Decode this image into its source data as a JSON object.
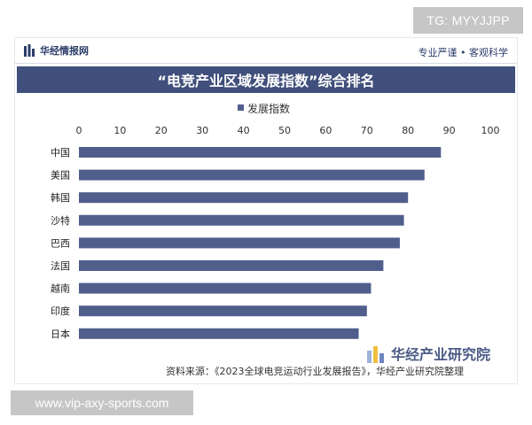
{
  "badge": {
    "text": "TG: MYYJJPP"
  },
  "header": {
    "brand": "华经情报网",
    "motto": "专业严谨 • 客观科学"
  },
  "colors": {
    "title_band": "#404f7b",
    "bar": "#505e8c",
    "text_dark": "#2c3d6a"
  },
  "footer": {
    "source": "资料来源：《2023全球电竞运动行业发展报告》，华经产业研究院整理",
    "watermark_name": "华经产业研究院"
  },
  "url_badge": {
    "text": "www.vip-axy-sports.com"
  },
  "chart_data": {
    "type": "bar",
    "orientation": "horizontal",
    "title": "“电竞产业区域发展指数”综合排名",
    "categories": [
      "中国",
      "美国",
      "韩国",
      "沙特",
      "巴西",
      "法国",
      "越南",
      "印度",
      "日本"
    ],
    "series": [
      {
        "name": "发展指数",
        "values": [
          88,
          84,
          80,
          79,
          78,
          74,
          71,
          70,
          68
        ]
      }
    ],
    "xlim": [
      0,
      100
    ],
    "xticks": [
      0,
      10,
      20,
      30,
      40,
      50,
      60,
      70,
      80,
      90,
      100
    ],
    "xlabel": "",
    "ylabel": "",
    "grid": false,
    "legend": "top-center"
  }
}
